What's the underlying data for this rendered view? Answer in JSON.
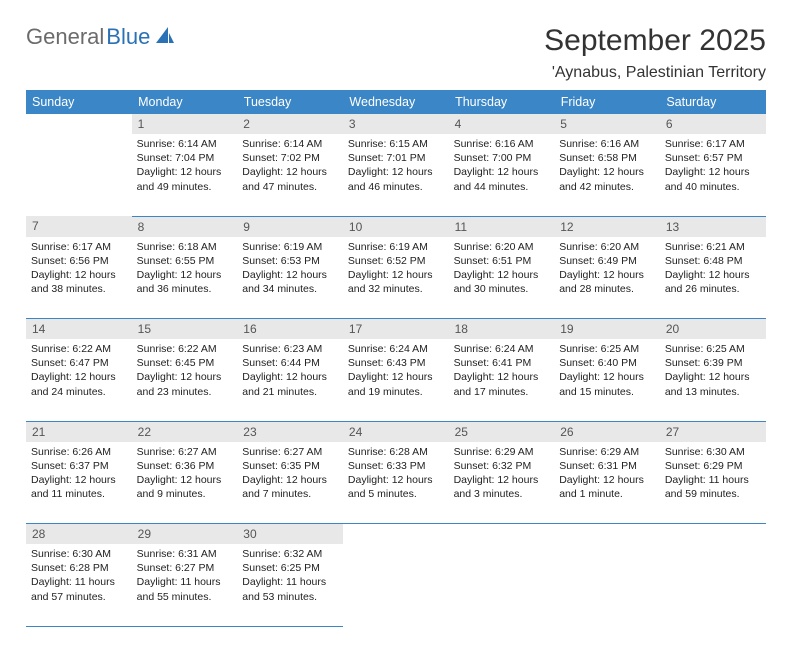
{
  "logo": {
    "textGray": "General",
    "textBlue": "Blue"
  },
  "header": {
    "title": "September 2025",
    "location": "'Aynabus, Palestinian Territory"
  },
  "style": {
    "headerBg": "#3b86c6",
    "headerFg": "#ffffff",
    "dayNumBg": "#e8e8e8",
    "dayNumFg": "#555555",
    "borderColor": "#3b86c6",
    "textColor": "#222222",
    "logoGray": "#6b6b6b",
    "logoBlue": "#2a72b5",
    "titleFontSize": 30,
    "locationFontSize": 16,
    "weekdayFontSize": 12.5,
    "cellFontSize": 10.5
  },
  "weekdays": [
    "Sunday",
    "Monday",
    "Tuesday",
    "Wednesday",
    "Thursday",
    "Friday",
    "Saturday"
  ],
  "weeks": [
    [
      null,
      {
        "n": "1",
        "sr": "Sunrise: 6:14 AM",
        "ss": "Sunset: 7:04 PM",
        "d1": "Daylight: 12 hours",
        "d2": "and 49 minutes."
      },
      {
        "n": "2",
        "sr": "Sunrise: 6:14 AM",
        "ss": "Sunset: 7:02 PM",
        "d1": "Daylight: 12 hours",
        "d2": "and 47 minutes."
      },
      {
        "n": "3",
        "sr": "Sunrise: 6:15 AM",
        "ss": "Sunset: 7:01 PM",
        "d1": "Daylight: 12 hours",
        "d2": "and 46 minutes."
      },
      {
        "n": "4",
        "sr": "Sunrise: 6:16 AM",
        "ss": "Sunset: 7:00 PM",
        "d1": "Daylight: 12 hours",
        "d2": "and 44 minutes."
      },
      {
        "n": "5",
        "sr": "Sunrise: 6:16 AM",
        "ss": "Sunset: 6:58 PM",
        "d1": "Daylight: 12 hours",
        "d2": "and 42 minutes."
      },
      {
        "n": "6",
        "sr": "Sunrise: 6:17 AM",
        "ss": "Sunset: 6:57 PM",
        "d1": "Daylight: 12 hours",
        "d2": "and 40 minutes."
      }
    ],
    [
      {
        "n": "7",
        "sr": "Sunrise: 6:17 AM",
        "ss": "Sunset: 6:56 PM",
        "d1": "Daylight: 12 hours",
        "d2": "and 38 minutes."
      },
      {
        "n": "8",
        "sr": "Sunrise: 6:18 AM",
        "ss": "Sunset: 6:55 PM",
        "d1": "Daylight: 12 hours",
        "d2": "and 36 minutes."
      },
      {
        "n": "9",
        "sr": "Sunrise: 6:19 AM",
        "ss": "Sunset: 6:53 PM",
        "d1": "Daylight: 12 hours",
        "d2": "and 34 minutes."
      },
      {
        "n": "10",
        "sr": "Sunrise: 6:19 AM",
        "ss": "Sunset: 6:52 PM",
        "d1": "Daylight: 12 hours",
        "d2": "and 32 minutes."
      },
      {
        "n": "11",
        "sr": "Sunrise: 6:20 AM",
        "ss": "Sunset: 6:51 PM",
        "d1": "Daylight: 12 hours",
        "d2": "and 30 minutes."
      },
      {
        "n": "12",
        "sr": "Sunrise: 6:20 AM",
        "ss": "Sunset: 6:49 PM",
        "d1": "Daylight: 12 hours",
        "d2": "and 28 minutes."
      },
      {
        "n": "13",
        "sr": "Sunrise: 6:21 AM",
        "ss": "Sunset: 6:48 PM",
        "d1": "Daylight: 12 hours",
        "d2": "and 26 minutes."
      }
    ],
    [
      {
        "n": "14",
        "sr": "Sunrise: 6:22 AM",
        "ss": "Sunset: 6:47 PM",
        "d1": "Daylight: 12 hours",
        "d2": "and 24 minutes."
      },
      {
        "n": "15",
        "sr": "Sunrise: 6:22 AM",
        "ss": "Sunset: 6:45 PM",
        "d1": "Daylight: 12 hours",
        "d2": "and 23 minutes."
      },
      {
        "n": "16",
        "sr": "Sunrise: 6:23 AM",
        "ss": "Sunset: 6:44 PM",
        "d1": "Daylight: 12 hours",
        "d2": "and 21 minutes."
      },
      {
        "n": "17",
        "sr": "Sunrise: 6:24 AM",
        "ss": "Sunset: 6:43 PM",
        "d1": "Daylight: 12 hours",
        "d2": "and 19 minutes."
      },
      {
        "n": "18",
        "sr": "Sunrise: 6:24 AM",
        "ss": "Sunset: 6:41 PM",
        "d1": "Daylight: 12 hours",
        "d2": "and 17 minutes."
      },
      {
        "n": "19",
        "sr": "Sunrise: 6:25 AM",
        "ss": "Sunset: 6:40 PM",
        "d1": "Daylight: 12 hours",
        "d2": "and 15 minutes."
      },
      {
        "n": "20",
        "sr": "Sunrise: 6:25 AM",
        "ss": "Sunset: 6:39 PM",
        "d1": "Daylight: 12 hours",
        "d2": "and 13 minutes."
      }
    ],
    [
      {
        "n": "21",
        "sr": "Sunrise: 6:26 AM",
        "ss": "Sunset: 6:37 PM",
        "d1": "Daylight: 12 hours",
        "d2": "and 11 minutes."
      },
      {
        "n": "22",
        "sr": "Sunrise: 6:27 AM",
        "ss": "Sunset: 6:36 PM",
        "d1": "Daylight: 12 hours",
        "d2": "and 9 minutes."
      },
      {
        "n": "23",
        "sr": "Sunrise: 6:27 AM",
        "ss": "Sunset: 6:35 PM",
        "d1": "Daylight: 12 hours",
        "d2": "and 7 minutes."
      },
      {
        "n": "24",
        "sr": "Sunrise: 6:28 AM",
        "ss": "Sunset: 6:33 PM",
        "d1": "Daylight: 12 hours",
        "d2": "and 5 minutes."
      },
      {
        "n": "25",
        "sr": "Sunrise: 6:29 AM",
        "ss": "Sunset: 6:32 PM",
        "d1": "Daylight: 12 hours",
        "d2": "and 3 minutes."
      },
      {
        "n": "26",
        "sr": "Sunrise: 6:29 AM",
        "ss": "Sunset: 6:31 PM",
        "d1": "Daylight: 12 hours",
        "d2": "and 1 minute."
      },
      {
        "n": "27",
        "sr": "Sunrise: 6:30 AM",
        "ss": "Sunset: 6:29 PM",
        "d1": "Daylight: 11 hours",
        "d2": "and 59 minutes."
      }
    ],
    [
      {
        "n": "28",
        "sr": "Sunrise: 6:30 AM",
        "ss": "Sunset: 6:28 PM",
        "d1": "Daylight: 11 hours",
        "d2": "and 57 minutes."
      },
      {
        "n": "29",
        "sr": "Sunrise: 6:31 AM",
        "ss": "Sunset: 6:27 PM",
        "d1": "Daylight: 11 hours",
        "d2": "and 55 minutes."
      },
      {
        "n": "30",
        "sr": "Sunrise: 6:32 AM",
        "ss": "Sunset: 6:25 PM",
        "d1": "Daylight: 11 hours",
        "d2": "and 53 minutes."
      },
      null,
      null,
      null,
      null
    ]
  ]
}
